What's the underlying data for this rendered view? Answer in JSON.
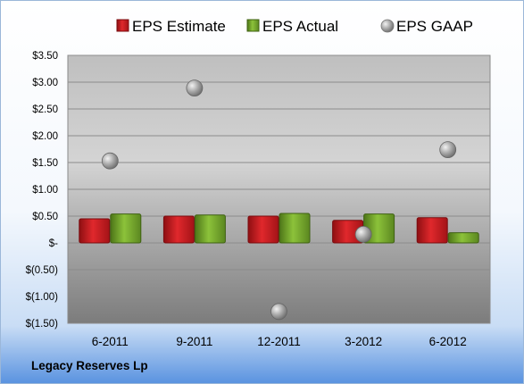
{
  "chart_data": {
    "type": "bar",
    "categories": [
      "6-2011",
      "9-2011",
      "12-2011",
      "3-2012",
      "6-2012"
    ],
    "series": [
      {
        "name": "EPS Estimate",
        "kind": "bar",
        "color": "#c0171c",
        "values": [
          0.45,
          0.5,
          0.5,
          0.42,
          0.47
        ]
      },
      {
        "name": "EPS Actual",
        "kind": "bar",
        "color": "#6a9a22",
        "values": [
          0.54,
          0.52,
          0.55,
          0.54,
          0.19
        ]
      },
      {
        "name": "EPS GAAP",
        "kind": "scatter",
        "color": "#a8a8a8",
        "values": [
          1.53,
          2.89,
          -1.28,
          0.16,
          1.74
        ]
      }
    ],
    "ylim": [
      -1.5,
      3.5
    ],
    "yticks": [
      3.5,
      3.0,
      2.5,
      2.0,
      1.5,
      1.0,
      0.5,
      0,
      -0.5,
      -1.0,
      -1.5
    ],
    "ytick_labels": [
      "$3.50",
      "$3.00",
      "$2.50",
      "$2.00",
      "$1.50",
      "$1.00",
      "$0.50",
      "$-",
      "$(0.50)",
      "$(1.00)",
      "$(1.50)"
    ],
    "grid": true,
    "legend_position": "top"
  },
  "company_name": "Legacy Reserves Lp"
}
